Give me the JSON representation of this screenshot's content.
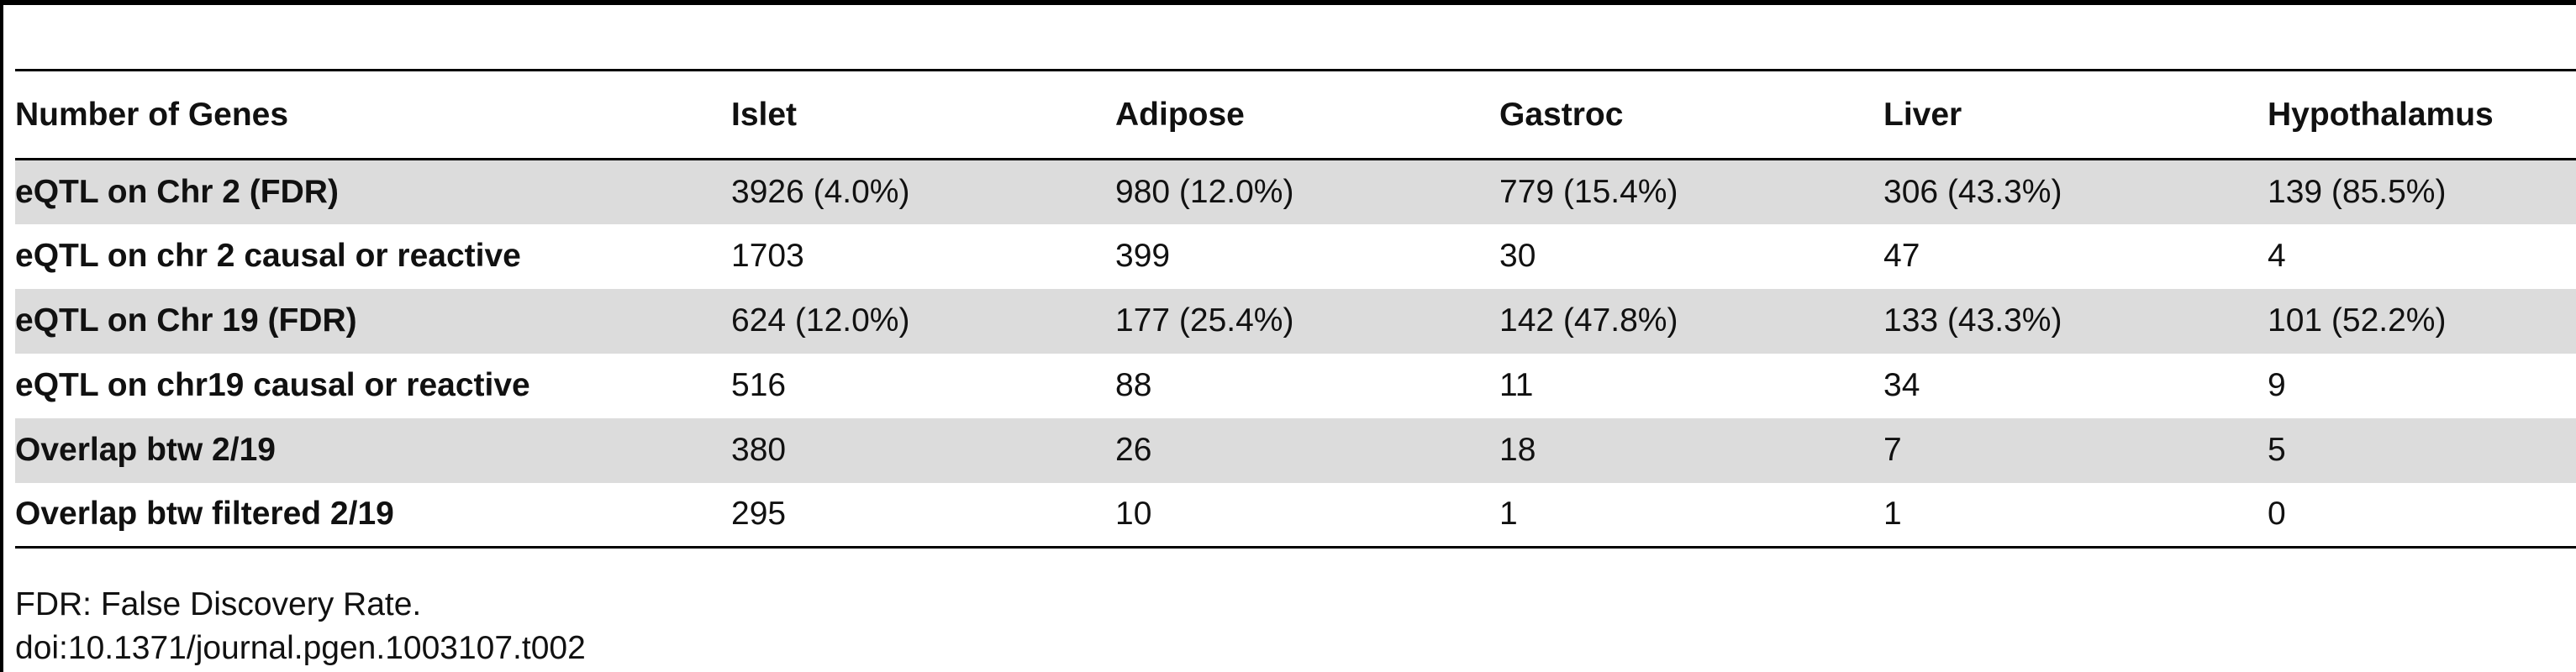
{
  "table": {
    "headers": [
      "Number of Genes",
      "Islet",
      "Adipose",
      "Gastroc",
      "Liver",
      "Hypothalamus"
    ],
    "rows": [
      [
        "eQTL on Chr 2 (FDR)",
        "3926 (4.0%)",
        "980 (12.0%)",
        "779 (15.4%)",
        "306 (43.3%)",
        "139 (85.5%)"
      ],
      [
        "eQTL on chr 2 causal or reactive",
        "1703",
        "399",
        "30",
        "47",
        "4"
      ],
      [
        "eQTL on Chr 19 (FDR)",
        "624 (12.0%)",
        "177 (25.4%)",
        "142 (47.8%)",
        "133 (43.3%)",
        "101 (52.2%)"
      ],
      [
        "eQTL on chr19 causal or reactive",
        "516",
        "88",
        "11",
        "34",
        "9"
      ],
      [
        "Overlap btw 2/19",
        "380",
        "26",
        "18",
        "7",
        "5"
      ],
      [
        "Overlap btw filtered 2/19",
        "295",
        "10",
        "1",
        "1",
        "0"
      ]
    ],
    "shaded_row_color": "#dcdcdc"
  },
  "footnotes": {
    "abbreviation": "FDR: False Discovery Rate.",
    "doi": "doi:10.1371/journal.pgen.1003107.t002"
  }
}
